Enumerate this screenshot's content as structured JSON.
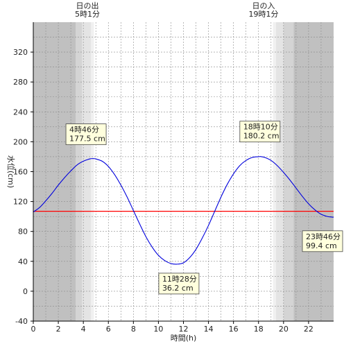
{
  "chart_data": {
    "type": "line",
    "xlabel": "時間(h)",
    "ylabel": "水位(cm)",
    "xlim": [
      0,
      24
    ],
    "ylim": [
      -40,
      360
    ],
    "x_ticks": [
      0,
      2,
      4,
      6,
      8,
      10,
      12,
      14,
      16,
      18,
      20,
      22
    ],
    "y_ticks": [
      -40,
      0,
      40,
      80,
      120,
      160,
      200,
      240,
      280,
      320
    ],
    "grid": true,
    "series": [
      {
        "color": "#0000dd",
        "x": [
          0,
          0.5,
          1,
          1.5,
          2,
          2.5,
          3,
          3.5,
          4,
          4.5,
          4.77,
          5,
          5.5,
          6,
          6.5,
          7,
          7.5,
          8,
          8.5,
          9,
          9.5,
          10,
          10.5,
          11,
          11.47,
          12,
          12.5,
          13,
          13.5,
          14,
          14.5,
          15,
          15.5,
          16,
          16.5,
          17,
          17.5,
          18,
          18.17,
          18.5,
          19,
          19.5,
          20,
          20.5,
          21,
          21.5,
          22,
          22.5,
          23,
          23.5,
          23.77,
          24
        ],
        "y": [
          106,
          112,
          121,
          131,
          142,
          152,
          161,
          169,
          174,
          177,
          177.5,
          177,
          174,
          167,
          156,
          142,
          126,
          108,
          90,
          73,
          59,
          48,
          41,
          37,
          36.2,
          38,
          45,
          56,
          71,
          88,
          107,
          126,
          143,
          157,
          168,
          175,
          179,
          180,
          180.2,
          179,
          175,
          168,
          159,
          149,
          138,
          127,
          117,
          109,
          103,
          100,
          99.4,
          99
        ]
      }
    ],
    "reference_line": {
      "y": 107,
      "color": "#ff0000"
    },
    "sunrise": {
      "title": "日の出",
      "time": "5時1分"
    },
    "sunset": {
      "title": "日の入",
      "time": "19時1分"
    },
    "shading": {
      "night": "#c0c0c0",
      "twilight_dark": "#d4d4d4",
      "twilight_mid": "#e4e4e4",
      "twilight_light": "#f0f0f0",
      "morning_edges_h": [
        3.4,
        3.9,
        4.6
      ],
      "evening_edges_h": [
        19.4,
        20.0,
        20.8
      ]
    },
    "annotations": [
      {
        "x": 4.77,
        "y": 177.5,
        "time": "4時46分",
        "level": "177.5 cm"
      },
      {
        "x": 11.47,
        "y": 36.2,
        "time": "11時28分",
        "level": "36.2 cm"
      },
      {
        "x": 18.17,
        "y": 180.2,
        "time": "18時10分",
        "level": "180.2 cm"
      },
      {
        "x": 23.77,
        "y": 99.4,
        "time": "23時46分",
        "level": "99.4 cm"
      }
    ]
  }
}
